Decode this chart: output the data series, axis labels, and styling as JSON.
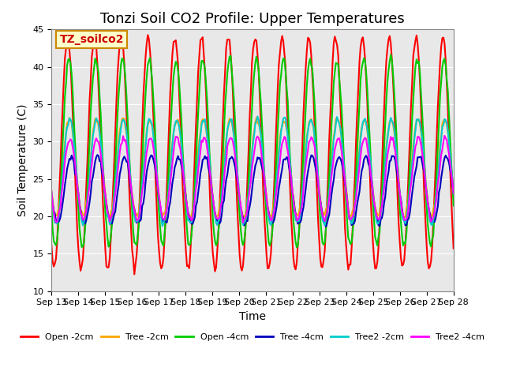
{
  "title": "Tonzi Soil CO2 Profile: Upper Temperatures",
  "xlabel": "Time",
  "ylabel": "Soil Temperature (C)",
  "ylim": [
    10,
    45
  ],
  "xlim": [
    0,
    15
  ],
  "xtick_positions": [
    0,
    1,
    2,
    3,
    4,
    5,
    6,
    7,
    8,
    9,
    10,
    11,
    12,
    13,
    14,
    15
  ],
  "xtick_labels": [
    "Sep 13",
    "Sep 14",
    "Sep 15",
    "Sep 16",
    "Sep 17",
    "Sep 18",
    "Sep 19",
    "Sep 20",
    "Sep 21",
    "Sep 22",
    "Sep 23",
    "Sep 24",
    "Sep 25",
    "Sep 26",
    "Sep 27",
    "Sep 28"
  ],
  "ytick_vals": [
    10,
    15,
    20,
    25,
    30,
    35,
    40,
    45
  ],
  "legend_label": "TZ_soilco2",
  "series": {
    "Open -2cm": {
      "color": "#FF0000",
      "lw": 1.5
    },
    "Tree -2cm": {
      "color": "#FFA500",
      "lw": 1.5
    },
    "Open -4cm": {
      "color": "#00CC00",
      "lw": 1.5
    },
    "Tree -4cm": {
      "color": "#0000BB",
      "lw": 1.5
    },
    "Tree2 -2cm": {
      "color": "#00CCCC",
      "lw": 1.5
    },
    "Tree2 -4cm": {
      "color": "#FF00FF",
      "lw": 1.5
    }
  },
  "bg_color": "#E8E8E8",
  "fig_bg": "#FFFFFF",
  "grid_color": "#FFFFFF",
  "title_fontsize": 13,
  "label_fontsize": 10,
  "tick_fontsize": 8
}
